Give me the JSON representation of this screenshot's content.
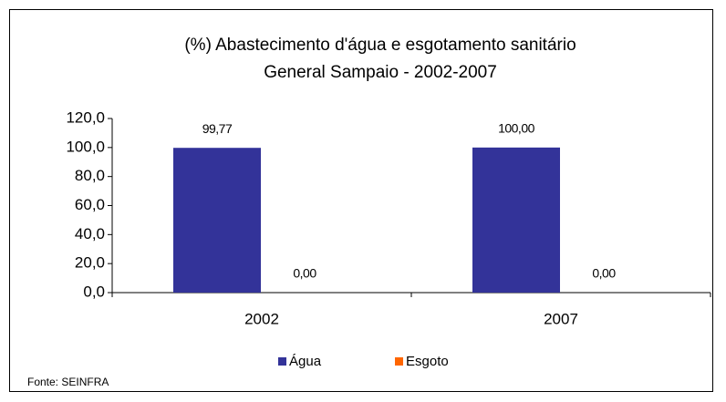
{
  "chart_data": {
    "type": "bar",
    "title": [
      "(%) Abastecimento d'água e esgotamento sanitário",
      "General Sampaio - 2002-2007"
    ],
    "categories": [
      "2002",
      "2007"
    ],
    "series": [
      {
        "name": "Água",
        "color": "#333399",
        "values": [
          99.77,
          100.0
        ],
        "value_labels": [
          "99,77",
          "100,00"
        ]
      },
      {
        "name": "Esgoto",
        "color": "#ff6600",
        "values": [
          0,
          0
        ],
        "value_labels": [
          "0,00",
          "0,00"
        ]
      }
    ],
    "ylim": [
      0,
      120
    ],
    "yticks": [
      {
        "value": 0,
        "label": "0,0"
      },
      {
        "value": 20,
        "label": "20,0"
      },
      {
        "value": 40,
        "label": "40,0"
      },
      {
        "value": 60,
        "label": "60,0"
      },
      {
        "value": 80,
        "label": "80,0"
      },
      {
        "value": 100,
        "label": "100,0"
      },
      {
        "value": 120,
        "label": "120,0"
      }
    ],
    "legend": "bottom",
    "source": "Fonte: SEINFRA"
  }
}
